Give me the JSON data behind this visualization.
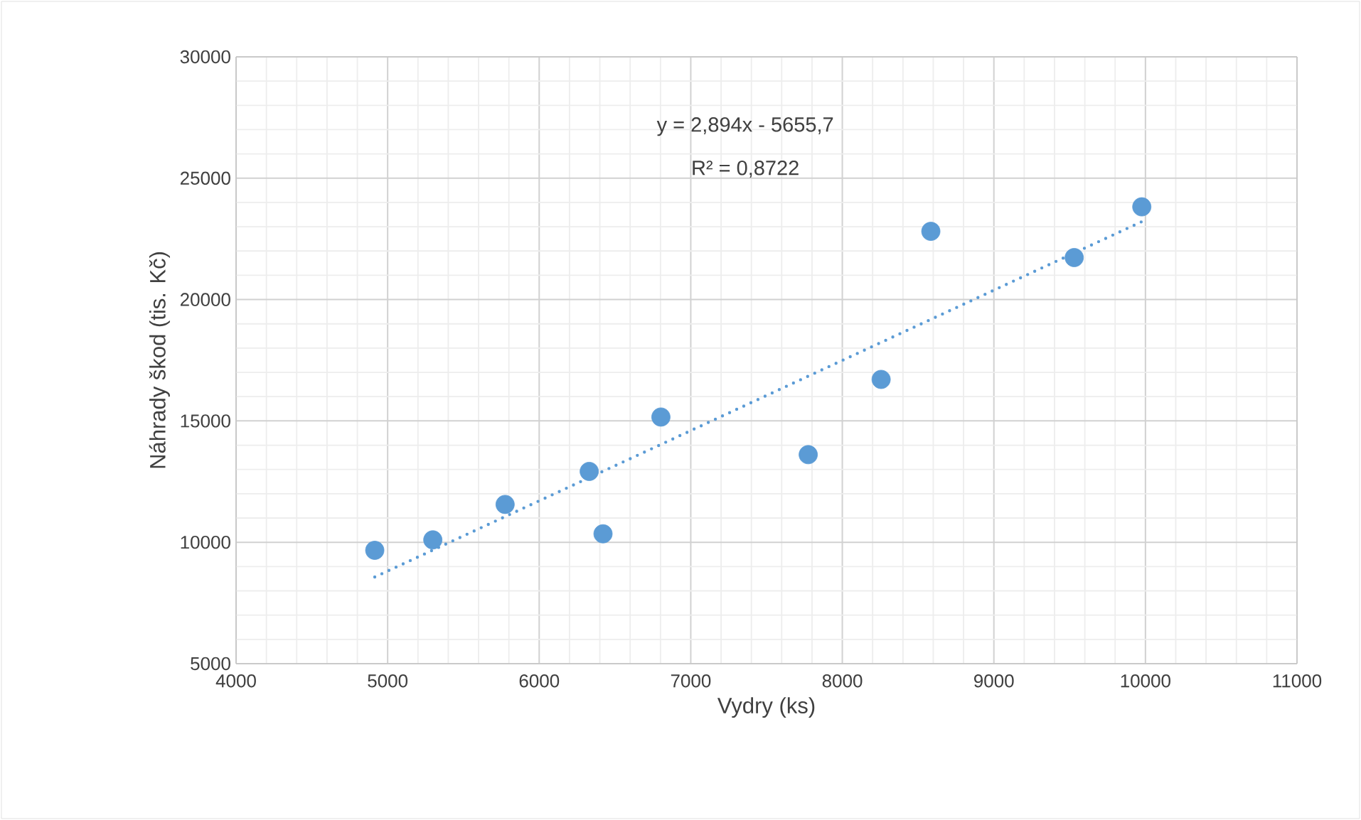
{
  "chart_data": {
    "type": "scatter",
    "xlabel": "Vydry (ks)",
    "ylabel": "Náhrady škod (tis. Kč)",
    "annotations": [
      "y = 2,894x - 5655,7",
      "R² = 0,8722"
    ],
    "x": [
      4915,
      5298,
      5775,
      6330,
      6421,
      6803,
      7775,
      8256,
      8584,
      9530,
      9976
    ],
    "series": [
      {
        "color": "#5b9bd5",
        "marker": "circle",
        "values": [
          9670,
          10100,
          11560,
          12920,
          10350,
          15160,
          13610,
          16710,
          22810,
          21730,
          23820
        ]
      },
      {
        "type": "line",
        "color": "#5b9bd5",
        "line_style": "dotted",
        "marker": "none",
        "x": [
          4915,
          9976
        ],
        "values": [
          8570,
          23210
        ]
      }
    ],
    "xlim": [
      4000,
      11000
    ],
    "xticks": [
      4000,
      5000,
      6000,
      7000,
      8000,
      9000,
      10000,
      11000
    ],
    "ylim": [
      5000,
      30000
    ],
    "yticks": [
      5000,
      10000,
      15000,
      20000,
      25000,
      30000
    ],
    "grid": true
  }
}
